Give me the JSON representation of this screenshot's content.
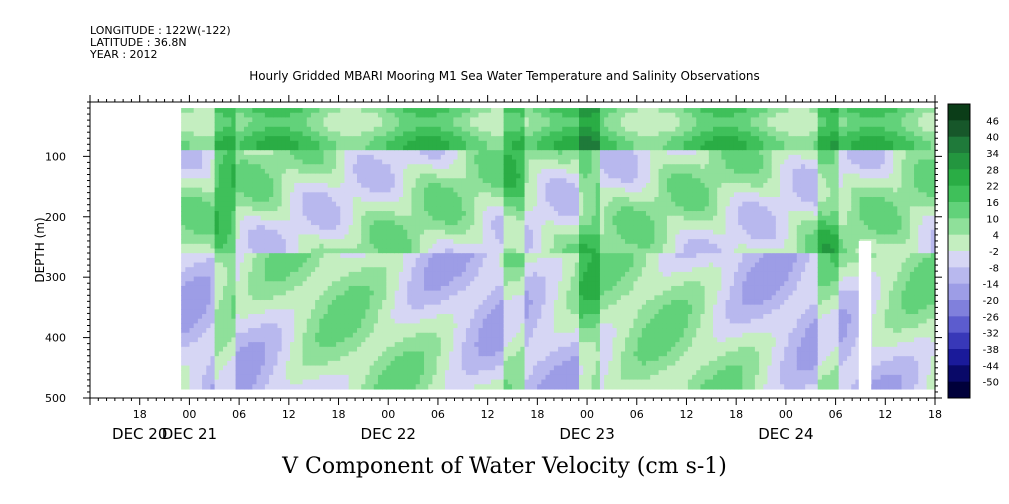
{
  "header": {
    "longitude": "LONGITUDE : 122W(-122)",
    "latitude": "LATITUDE : 36.8N",
    "year": "YEAR : 2012"
  },
  "chart_data": {
    "type": "heatmap",
    "title": "Hourly Gridded MBARI Mooring M1 Sea Water Temperature and Salinity Observations",
    "xlabel": "V Component of Water Velocity (cm s-1)",
    "ylabel": "DEPTH (m)",
    "x_axis": {
      "hour_ticks": [
        "18",
        "00",
        "06",
        "12",
        "18",
        "00",
        "06",
        "12",
        "18",
        "00",
        "06",
        "12",
        "18",
        "00",
        "06",
        "12",
        "18"
      ],
      "date_labels": [
        "DEC 20",
        "DEC 21",
        "DEC 22",
        "DEC 23",
        "DEC 24"
      ],
      "range": [
        "DEC 20 12:00",
        "DEC 24 18:00"
      ]
    },
    "y_axis": {
      "ticks": [
        100,
        200,
        300,
        400,
        500
      ],
      "range": [
        500,
        10
      ],
      "inverted": true
    },
    "colorbar": {
      "labels": [
        "46",
        "40",
        "34",
        "28",
        "22",
        "16",
        "10",
        "4",
        "-2",
        "-8",
        "-14",
        "-20",
        "-26",
        "-32",
        "-38",
        "-44",
        "-50"
      ],
      "colors": [
        "#0b3d18",
        "#17572a",
        "#1f7a3a",
        "#23963f",
        "#2aad45",
        "#3fc05a",
        "#62d27a",
        "#8fe09a",
        "#c4eec0",
        "#d6d6f4",
        "#b8b8ee",
        "#9d9de6",
        "#8080dc",
        "#5c5cce",
        "#3838b8",
        "#1a1a9a",
        "#090968",
        "#00003a"
      ],
      "range": [
        -50,
        52
      ]
    },
    "data_extent": {
      "time_start": "DEC 20 23:00",
      "time_end": "DEC 24 18:00",
      "depth_min": 20,
      "depth_max": 485
    },
    "field_summary": {
      "near_surface_0_80m": "mostly positive (green, 10 to 30)",
      "mid_depth_100_250m": "mixed, patches of -2 to -14",
      "deep_250_480m": "mixed light green and light blue, -14 to 16"
    }
  }
}
